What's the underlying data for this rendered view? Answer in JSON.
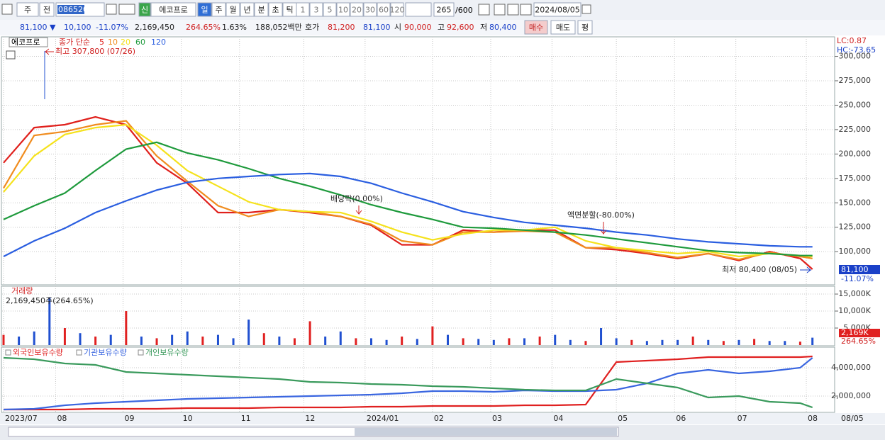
{
  "toolbar": {
    "market": "주",
    "scope": "전",
    "code": "086520",
    "badge": "신",
    "name": "에코프로",
    "periods": [
      "일",
      "주",
      "월",
      "년",
      "분",
      "초",
      "틱"
    ],
    "intervals": [
      "1",
      "3",
      "5",
      "10",
      "20",
      "30",
      "60",
      "120"
    ],
    "count": "265",
    "max": "/600",
    "date": "2024/08/05"
  },
  "quote": {
    "price": "81,100 ▼",
    "change": "10,100",
    "rate": "-11.07%",
    "volume": "2,169,450",
    "volume_rate": "264.65%",
    "turnover": "1.63%",
    "amount": "188,052백만",
    "bid_label": "호가",
    "ask": "81,200",
    "bid": "81,100",
    "open_label": "시",
    "open": "90,000",
    "high_label": "고",
    "high": "92,600",
    "low_label": "저",
    "low": "80,400",
    "buy": "매수",
    "sell": "매도",
    "avg": "평"
  },
  "chart_data": [
    {
      "type": "line",
      "title": "에코프로",
      "legend_title": "종가 단순",
      "x": [
        0,
        10,
        20,
        30,
        40,
        50,
        60,
        70,
        80,
        90,
        100,
        110,
        120,
        130,
        140,
        150,
        160,
        170,
        180,
        190,
        200,
        210,
        220,
        230,
        240,
        250,
        260,
        264
      ],
      "xlim": [
        0,
        265
      ],
      "ylim": [
        66000,
        320000
      ],
      "yticks": [
        {
          "value": 100000,
          "label": "100,000"
        },
        {
          "value": 125000,
          "label": "125,000"
        },
        {
          "value": 150000,
          "label": "150,000"
        },
        {
          "value": 175000,
          "label": "175,000"
        },
        {
          "value": 200000,
          "label": "200,000"
        },
        {
          "value": 225000,
          "label": "225,000"
        },
        {
          "value": 250000,
          "label": "250,000"
        },
        {
          "value": 275000,
          "label": "275,000"
        },
        {
          "value": 300000,
          "label": "300,000"
        }
      ],
      "series": [
        {
          "name": "5",
          "color": "#e0201c",
          "values": [
            191000,
            227000,
            230000,
            238000,
            230000,
            191000,
            170000,
            140000,
            140000,
            143000,
            140000,
            136000,
            127000,
            107000,
            107000,
            122000,
            120000,
            122000,
            122000,
            104000,
            102000,
            98000,
            93000,
            98000,
            91000,
            100000,
            93000,
            82000
          ]
        },
        {
          "name": "10",
          "color": "#f08c1e",
          "values": [
            165000,
            219000,
            223000,
            230000,
            234000,
            198000,
            172000,
            147000,
            136000,
            143000,
            141000,
            136000,
            128000,
            111000,
            107000,
            120000,
            120000,
            121000,
            120000,
            104000,
            104000,
            99000,
            94000,
            98000,
            92000,
            99000,
            95000,
            93000
          ]
        },
        {
          "name": "20",
          "color": "#f5e21c",
          "values": [
            161000,
            198000,
            220000,
            227000,
            230000,
            209000,
            183000,
            167000,
            151000,
            143000,
            141000,
            140000,
            131000,
            120000,
            112000,
            118000,
            122000,
            122000,
            125000,
            111000,
            104000,
            101000,
            98000,
            100000,
            95000,
            98000,
            96000,
            95000
          ]
        },
        {
          "name": "60",
          "color": "#1e9a3c",
          "values": [
            133000,
            147000,
            160000,
            183000,
            205000,
            212000,
            201000,
            194000,
            185000,
            175000,
            167000,
            158000,
            148000,
            140000,
            133000,
            125000,
            124000,
            122000,
            120000,
            117000,
            113000,
            109000,
            105000,
            101000,
            99000,
            98000,
            96000,
            96000
          ]
        },
        {
          "name": "120",
          "color": "#2a5ee0",
          "values": [
            95000,
            111000,
            124000,
            140000,
            152000,
            163000,
            171000,
            175000,
            177000,
            179000,
            180000,
            177000,
            170000,
            160000,
            151000,
            141000,
            135000,
            130000,
            127000,
            124000,
            120000,
            117000,
            113000,
            110000,
            108000,
            106000,
            105000,
            105000
          ]
        }
      ],
      "annotations": [
        "최고 307,800 (07/26)",
        "배당락(0.00%)",
        "액면분할(-80.00%)",
        "최저 80,400 (08/05)"
      ],
      "stats": [
        "LC:0.87",
        "HC:-73.65"
      ],
      "last_price": "81,100",
      "last_change": "-11.07%"
    },
    {
      "type": "bar",
      "title": "거래량",
      "subtitle": "2,169,450주(264.65%)",
      "x": [
        0,
        5,
        10,
        15,
        20,
        25,
        30,
        35,
        40,
        45,
        50,
        55,
        60,
        65,
        70,
        75,
        80,
        85,
        90,
        95,
        100,
        105,
        110,
        115,
        120,
        125,
        130,
        135,
        140,
        145,
        150,
        155,
        160,
        165,
        170,
        175,
        180,
        185,
        190,
        195,
        200,
        205,
        210,
        215,
        220,
        225,
        230,
        235,
        240,
        245,
        250,
        255,
        260,
        264
      ],
      "xlim": [
        0,
        265
      ],
      "ylim": [
        0,
        17300
      ],
      "yticks": [
        {
          "value": 5000,
          "label": "5,000K"
        },
        {
          "value": 10000,
          "label": "10,000K"
        },
        {
          "value": 15000,
          "label": "15,000K"
        }
      ],
      "values": [
        3000,
        2500,
        4000,
        14000,
        5000,
        3500,
        2500,
        3000,
        10000,
        2500,
        2000,
        3000,
        4000,
        2500,
        3000,
        2000,
        7500,
        3500,
        2500,
        2000,
        7000,
        2500,
        4000,
        2000,
        2000,
        1500,
        2500,
        1800,
        5500,
        3000,
        2000,
        1800,
        1500,
        2000,
        2000,
        2500,
        3000,
        1500,
        1200,
        5000,
        2000,
        1500,
        1200,
        1500,
        1500,
        2500,
        1500,
        1200,
        1500,
        1800,
        1200,
        1200,
        1000,
        2169
      ],
      "colors": [
        "#e02020",
        "#2050d0",
        "#2050d0",
        "#2050d0",
        "#e02020",
        "#2050d0",
        "#e02020",
        "#2050d0",
        "#e02020",
        "#2050d0",
        "#e02020",
        "#2050d0",
        "#2050d0",
        "#e02020",
        "#2050d0",
        "#2050d0",
        "#2050d0",
        "#e02020",
        "#2050d0",
        "#e02020",
        "#e02020",
        "#2050d0",
        "#2050d0",
        "#e02020",
        "#2050d0",
        "#2050d0",
        "#e02020",
        "#2050d0",
        "#e02020",
        "#2050d0",
        "#e02020",
        "#2050d0",
        "#2050d0",
        "#e02020",
        "#2050d0",
        "#e02020",
        "#2050d0",
        "#2050d0",
        "#e02020",
        "#2050d0",
        "#2050d0",
        "#e02020",
        "#2050d0",
        "#2050d0",
        "#2050d0",
        "#e02020",
        "#2050d0",
        "#e02020",
        "#2050d0",
        "#e02020",
        "#2050d0",
        "#2050d0",
        "#e02020",
        "#2050d0"
      ],
      "last": "2,169K",
      "last_change": "264.65%"
    },
    {
      "type": "line",
      "x": [
        0,
        10,
        20,
        30,
        40,
        50,
        60,
        70,
        80,
        90,
        100,
        110,
        120,
        130,
        140,
        150,
        160,
        170,
        180,
        190,
        200,
        210,
        220,
        230,
        240,
        250,
        260,
        264
      ],
      "xlim": [
        0,
        265
      ],
      "ylim": [
        850000,
        5450000
      ],
      "yticks": [
        {
          "value": 2000000,
          "label": "2,000,000"
        },
        {
          "value": 4000000,
          "label": "4,000,000"
        }
      ],
      "xticks": [
        {
          "value": 0,
          "label": "2023/07"
        },
        {
          "value": 17,
          "label": "08"
        },
        {
          "value": 39,
          "label": "09"
        },
        {
          "value": 58,
          "label": "10"
        },
        {
          "value": 77,
          "label": "11"
        },
        {
          "value": 98,
          "label": "12"
        },
        {
          "value": 118,
          "label": "2024/01"
        },
        {
          "value": 140,
          "label": "02"
        },
        {
          "value": 159,
          "label": "03"
        },
        {
          "value": 179,
          "label": "04"
        },
        {
          "value": 200,
          "label": "05"
        },
        {
          "value": 219,
          "label": "06"
        },
        {
          "value": 239,
          "label": "07"
        },
        {
          "value": 262,
          "label": "08"
        }
      ],
      "x_end_label": "08/05",
      "series": [
        {
          "name": "외국인보유수량",
          "color": "#e02020",
          "values": [
            1050000,
            1050000,
            1050000,
            1100000,
            1100000,
            1100000,
            1150000,
            1150000,
            1150000,
            1200000,
            1200000,
            1200000,
            1250000,
            1250000,
            1300000,
            1300000,
            1300000,
            1350000,
            1350000,
            1400000,
            4400000,
            4500000,
            4600000,
            4750000,
            4750000,
            4750000,
            4750000,
            4800000
          ]
        },
        {
          "name": "기관보유수량",
          "color": "#3a66e0",
          "values": [
            1050000,
            1100000,
            1350000,
            1500000,
            1600000,
            1700000,
            1800000,
            1850000,
            1900000,
            1950000,
            2000000,
            2050000,
            2100000,
            2200000,
            2350000,
            2350000,
            2300000,
            2400000,
            2350000,
            2350000,
            2450000,
            2900000,
            3600000,
            3850000,
            3600000,
            3750000,
            4000000,
            4700000
          ]
        },
        {
          "name": "개인보유수량",
          "color": "#3a9a5c",
          "values": [
            4700000,
            4600000,
            4300000,
            4200000,
            3700000,
            3600000,
            3500000,
            3400000,
            3300000,
            3200000,
            3000000,
            2950000,
            2850000,
            2800000,
            2700000,
            2650000,
            2550000,
            2450000,
            2400000,
            2400000,
            3200000,
            2900000,
            2600000,
            1900000,
            2000000,
            1600000,
            1500000,
            1200000
          ]
        }
      ]
    }
  ]
}
